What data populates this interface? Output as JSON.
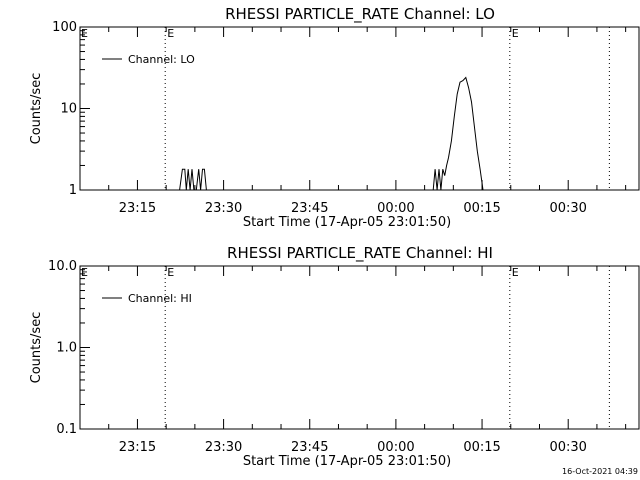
{
  "chart_data": [
    {
      "type": "line",
      "title": "RHESSI PARTICLE_RATE Channel: LO",
      "ylabel": "Counts/sec",
      "xlabel": "Start Time (17-Apr-05 23:01:50)",
      "yscale": "log",
      "ylim": [
        1,
        100
      ],
      "y_tick_labels": [
        "1",
        "10",
        "100"
      ],
      "x_tick_labels": [
        "23:15",
        "23:30",
        "23:45",
        "00:00",
        "00:15",
        "00:30"
      ],
      "legend_position": "top-left",
      "series": [
        {
          "name": "Channel: LO",
          "x": [
            "23:22:20",
            "23:22:50",
            "23:23:15",
            "23:23:30",
            "23:23:50",
            "23:24:10",
            "23:24:30",
            "23:24:50",
            "23:25:15",
            "23:25:40",
            "23:26:00",
            "23:26:20",
            "23:26:40",
            "23:27:00",
            "00:06:30",
            "00:06:50",
            "00:07:10",
            "00:07:30",
            "00:07:50",
            "00:08:10",
            "00:08:30",
            "00:08:50",
            "00:09:10",
            "00:09:40",
            "00:10:10",
            "00:10:40",
            "00:11:10",
            "00:11:40",
            "00:12:10",
            "00:12:40",
            "00:13:10",
            "00:13:40",
            "00:14:10",
            "00:14:40",
            "00:15:10",
            "00:15:40"
          ],
          "values": [
            1,
            1.8,
            1.8,
            1,
            1.8,
            1,
            1.8,
            1,
            1,
            1.8,
            1,
            1.8,
            1.8,
            1,
            1,
            1.8,
            1,
            1.8,
            1,
            1.8,
            1.5,
            2,
            2.5,
            4,
            8,
            15,
            21,
            22,
            24,
            18,
            12,
            6,
            3,
            1.8,
            1,
            1
          ]
        }
      ],
      "markers": [
        {
          "time": "23:19:50",
          "label": "E"
        },
        {
          "time": "00:19:50",
          "label": "E"
        },
        {
          "time": "00:37:10",
          "label": ""
        }
      ]
    },
    {
      "type": "line",
      "title": "RHESSI PARTICLE_RATE Channel: HI",
      "ylabel": "Counts/sec",
      "xlabel": "Start Time (17-Apr-05 23:01:50)",
      "yscale": "log",
      "ylim": [
        0.1,
        10
      ],
      "y_tick_labels": [
        "0.1",
        "1.0",
        "10.0"
      ],
      "x_tick_labels": [
        "23:15",
        "23:30",
        "23:45",
        "00:00",
        "00:15",
        "00:30"
      ],
      "legend_position": "top-left",
      "series": [
        {
          "name": "Channel: HI",
          "x": [],
          "values": []
        }
      ],
      "markers": [
        {
          "time": "23:19:50",
          "label": "E"
        },
        {
          "time": "00:19:50",
          "label": "E"
        },
        {
          "time": "00:37:10",
          "label": ""
        }
      ]
    }
  ],
  "footer": {
    "timestamp": "16-Oct-2021 04:39"
  }
}
